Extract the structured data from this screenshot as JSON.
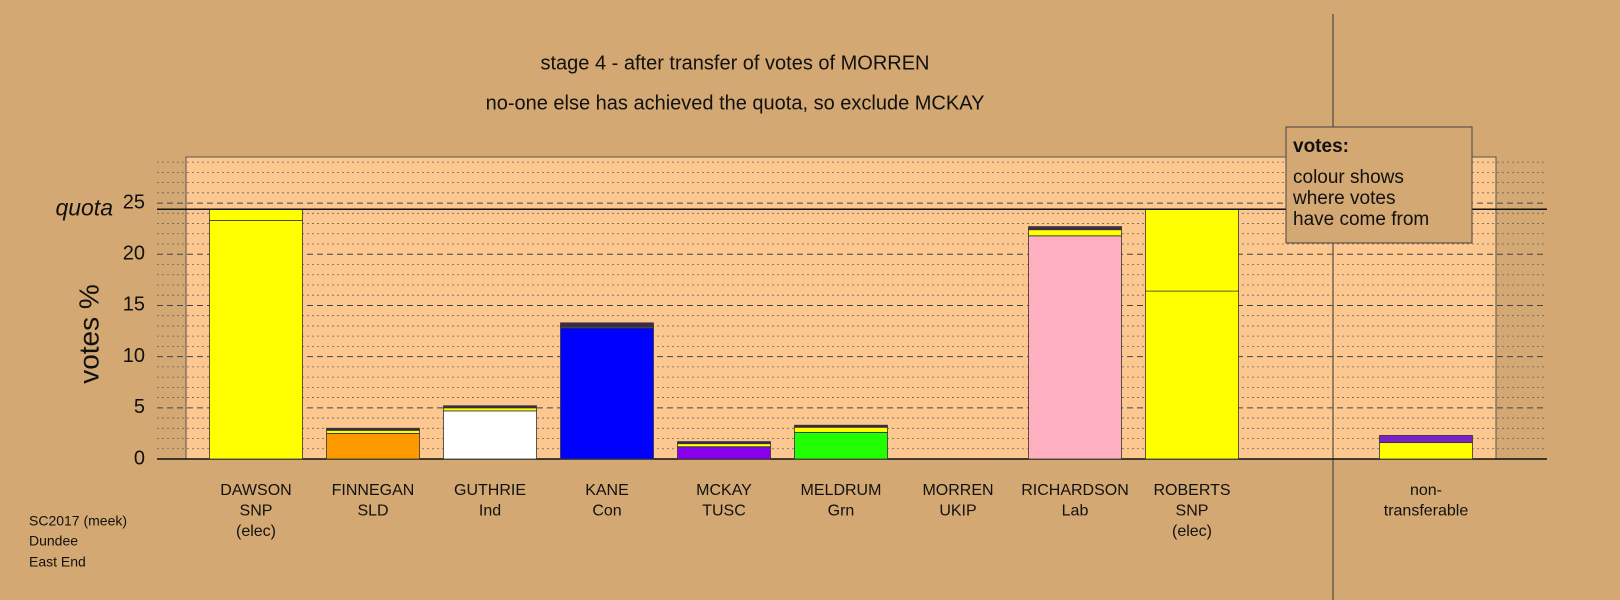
{
  "chart_data": {
    "type": "stacked_bar",
    "title": "stage 4 - after transfer of votes of MORREN",
    "subtitle": "no-one else has achieved the quota, so exclude MCKAY",
    "ylabel": "votes %",
    "categories": [
      [
        "DAWSON",
        "SNP",
        "(elec)"
      ],
      [
        "FINNEGAN",
        "SLD"
      ],
      [
        "GUTHRIE",
        "Ind"
      ],
      [
        "KANE",
        "Con"
      ],
      [
        "MCKAY",
        "TUSC"
      ],
      [
        "MELDRUM",
        "Grn"
      ],
      [
        "MORREN",
        "UKIP"
      ],
      [
        "RICHARDSON",
        "Lab"
      ],
      [
        "ROBERTS",
        "SNP",
        "(elec)"
      ],
      [
        "non-",
        "transferable"
      ]
    ],
    "series": [
      {
        "colors": [
          "#ffff00",
          "#ff9900",
          "#ffffff",
          "#0000ff",
          "#8800ee",
          "#22ff00",
          "#8800aa",
          "#ffb0c0",
          "#ffff00",
          "#ffffff"
        ],
        "values": [
          23.3,
          2.5,
          4.7,
          12.8,
          1.2,
          2.6,
          0,
          21.8,
          16.4,
          0
        ]
      },
      {
        "color": "#ffff00",
        "values": [
          1.1,
          0.3,
          0.3,
          0.1,
          0.3,
          0.5,
          0,
          0.6,
          8.0,
          1.6
        ]
      },
      {
        "color": "#3a2a50",
        "values": [
          0,
          0.2,
          0.2,
          0.4,
          0.2,
          0.2,
          0,
          0.3,
          0,
          0
        ]
      },
      {
        "color": "#7a20c8",
        "values": [
          0,
          0,
          0,
          0,
          0,
          0,
          0,
          0,
          0,
          0.7
        ]
      }
    ],
    "ylim": [
      0,
      29.5
    ],
    "yticks": [
      0,
      5,
      10,
      15,
      20,
      25
    ],
    "minor_yticks": [
      1,
      2,
      3,
      4,
      6,
      7,
      8,
      9,
      11,
      12,
      13,
      14,
      16,
      17,
      18,
      19,
      21,
      22,
      23,
      24,
      26,
      27,
      28,
      29
    ],
    "quota": {
      "value": 24.4,
      "label": "quota"
    },
    "legend": {
      "title": "votes:",
      "lines": [
        "colour shows",
        "where votes",
        "have come from"
      ]
    },
    "footer": [
      "SC2017 (meek)",
      "Dundee",
      "East End"
    ]
  }
}
